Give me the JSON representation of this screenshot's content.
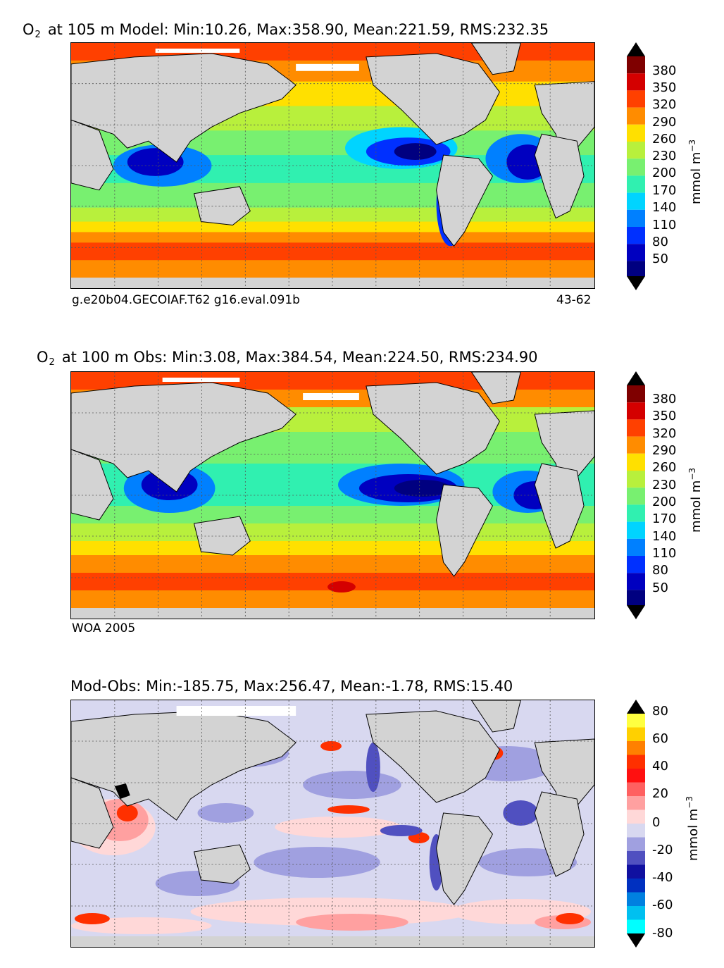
{
  "panels": [
    {
      "title_prefix": "O",
      "title_sub": "2",
      "title_rest": "at 105 m Model: Min:10.26, Max:358.90, Mean:221.59, RMS:232.35",
      "caption_left": "g.e20b04.GECOIAF.T62 g16.eval.091b",
      "caption_right": "43-62",
      "colorbar": {
        "ticks": [
          "380",
          "350",
          "320",
          "290",
          "260",
          "230",
          "200",
          "170",
          "140",
          "110",
          "80",
          "50"
        ],
        "colors": [
          "#7f0000",
          "#d40000",
          "#ff4000",
          "#ff8c00",
          "#ffe000",
          "#b8f03c",
          "#78f070",
          "#30f0b0",
          "#00d4ff",
          "#0080ff",
          "#0030ff",
          "#0000c0",
          "#000080"
        ],
        "unit": "mmol m",
        "unit_sup": "−3"
      },
      "palette": {
        "low": "#000080",
        "mid_low": "#00d4ff",
        "mid": "#78f070",
        "mid_high": "#ffe000",
        "high": "#ff4000"
      }
    },
    {
      "title_prefix": "O",
      "title_sub": "2",
      "title_rest": "at 100 m Obs: Min:3.08, Max:384.54, Mean:224.50, RMS:234.90",
      "caption_left": "WOA 2005",
      "caption_right": "",
      "colorbar": {
        "ticks": [
          "380",
          "350",
          "320",
          "290",
          "260",
          "230",
          "200",
          "170",
          "140",
          "110",
          "80",
          "50"
        ],
        "colors": [
          "#7f0000",
          "#d40000",
          "#ff4000",
          "#ff8c00",
          "#ffe000",
          "#b8f03c",
          "#78f070",
          "#30f0b0",
          "#00d4ff",
          "#0080ff",
          "#0030ff",
          "#0000c0",
          "#000080"
        ],
        "unit": "mmol m",
        "unit_sup": "−3"
      }
    },
    {
      "title_prefix": "",
      "title_sub": "",
      "title_rest": "Mod-Obs: Min:-185.75, Max:256.47, Mean:-1.78, RMS:15.40",
      "caption_left": "",
      "caption_right": "",
      "colorbar": {
        "ticks": [
          "80",
          "60",
          "40",
          "20",
          "0",
          "-20",
          "-40",
          "-60",
          "-80"
        ],
        "colors": [
          "#ffff40",
          "#ffd000",
          "#ff8000",
          "#ff3000",
          "#ff1010",
          "#ff6060",
          "#ffa0a0",
          "#ffd8d8",
          "#d8d8f0",
          "#a0a0e0",
          "#5050c0",
          "#1010a0",
          "#0030c0",
          "#0080e0",
          "#00c0f0",
          "#00ffff"
        ],
        "unit": "mmol m",
        "unit_sup": "−3"
      }
    }
  ],
  "colors": {
    "land": "#d3d3d3",
    "ice": "#ffffff",
    "coast": "#000000",
    "grid": "#555555"
  }
}
